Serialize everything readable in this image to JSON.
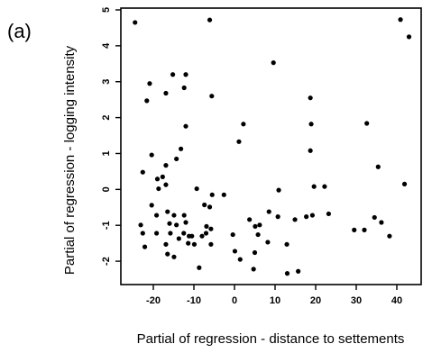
{
  "chart_data": {
    "type": "scatter",
    "panel_label": "(a)",
    "xlabel": "Partial of regression - distance to settements",
    "ylabel": "Partial of regression - logging intensity",
    "xlim": [
      -28,
      46
    ],
    "ylim": [
      -2.65,
      5.05
    ],
    "xticks": [
      -20,
      -10,
      0,
      10,
      20,
      30,
      40
    ],
    "xtick_labels": [
      "-20",
      "-10",
      "0",
      "10",
      "20",
      "30",
      "40"
    ],
    "yticks": [
      -2,
      -1,
      0,
      1,
      2,
      3,
      4,
      5
    ],
    "ytick_labels": [
      "-2",
      "-1",
      "0",
      "1",
      "2",
      "3",
      "4",
      "5"
    ],
    "grid": false,
    "legend": "none",
    "point_color": "#000000",
    "points": [
      [
        -24.5,
        4.65
      ],
      [
        -6.1,
        4.72
      ],
      [
        40.9,
        4.73
      ],
      [
        43.0,
        4.25
      ],
      [
        9.6,
        3.53
      ],
      [
        -15.2,
        3.2
      ],
      [
        -12.0,
        3.2
      ],
      [
        -20.9,
        2.95
      ],
      [
        -12.4,
        2.83
      ],
      [
        -16.9,
        2.68
      ],
      [
        -5.6,
        2.6
      ],
      [
        -21.6,
        2.47
      ],
      [
        18.7,
        2.55
      ],
      [
        -12.0,
        1.76
      ],
      [
        2.2,
        1.82
      ],
      [
        18.9,
        1.82
      ],
      [
        32.6,
        1.84
      ],
      [
        1.1,
        1.33
      ],
      [
        -13.2,
        1.13
      ],
      [
        18.7,
        1.08
      ],
      [
        -20.4,
        0.96
      ],
      [
        -14.3,
        0.85
      ],
      [
        -16.9,
        0.67
      ],
      [
        -22.6,
        0.48
      ],
      [
        -17.7,
        0.35
      ],
      [
        -19.0,
        0.29
      ],
      [
        35.4,
        0.63
      ],
      [
        41.9,
        0.15
      ],
      [
        -16.9,
        0.13
      ],
      [
        -18.7,
        0.02
      ],
      [
        -9.3,
        0.02
      ],
      [
        19.6,
        0.08
      ],
      [
        22.2,
        0.08
      ],
      [
        10.9,
        -0.02
      ],
      [
        -5.5,
        -0.15
      ],
      [
        -2.6,
        -0.15
      ],
      [
        -7.4,
        -0.43
      ],
      [
        -20.4,
        -0.44
      ],
      [
        -16.5,
        -0.62
      ],
      [
        -14.9,
        -0.72
      ],
      [
        -19.2,
        -0.72
      ],
      [
        -12.4,
        -0.72
      ],
      [
        8.5,
        -0.62
      ],
      [
        -6.1,
        -0.49
      ],
      [
        23.2,
        -0.68
      ],
      [
        17.7,
        -0.76
      ],
      [
        19.2,
        -0.72
      ],
      [
        10.7,
        -0.76
      ],
      [
        3.7,
        -0.84
      ],
      [
        -23.1,
        -0.99
      ],
      [
        -16.0,
        -0.95
      ],
      [
        -14.3,
        -0.99
      ],
      [
        -12.0,
        -0.92
      ],
      [
        -6.9,
        -1.03
      ],
      [
        -5.8,
        -1.1
      ],
      [
        5.1,
        -1.03
      ],
      [
        6.2,
        -0.99
      ],
      [
        14.9,
        -0.84
      ],
      [
        34.5,
        -0.78
      ],
      [
        36.2,
        -0.92
      ],
      [
        29.5,
        -1.13
      ],
      [
        32.0,
        -1.13
      ],
      [
        -22.6,
        -1.22
      ],
      [
        -19.2,
        -1.22
      ],
      [
        -15.8,
        -1.22
      ],
      [
        -12.5,
        -1.22
      ],
      [
        -13.7,
        -1.37
      ],
      [
        -11.2,
        -1.3
      ],
      [
        -10.5,
        -1.3
      ],
      [
        -8.0,
        -1.3
      ],
      [
        -7.0,
        -1.22
      ],
      [
        -0.4,
        -1.26
      ],
      [
        5.8,
        -1.26
      ],
      [
        38.2,
        -1.3
      ],
      [
        -22.1,
        -1.6
      ],
      [
        -16.9,
        -1.53
      ],
      [
        -11.4,
        -1.5
      ],
      [
        -9.9,
        -1.53
      ],
      [
        -5.8,
        -1.53
      ],
      [
        8.2,
        -1.47
      ],
      [
        12.9,
        -1.53
      ],
      [
        -16.5,
        -1.8
      ],
      [
        -14.9,
        -1.88
      ],
      [
        0.1,
        -1.72
      ],
      [
        5.0,
        -1.76
      ],
      [
        -8.7,
        -2.18
      ],
      [
        1.4,
        -1.95
      ],
      [
        4.7,
        -2.22
      ],
      [
        13.0,
        -2.34
      ],
      [
        15.7,
        -2.28
      ]
    ]
  }
}
